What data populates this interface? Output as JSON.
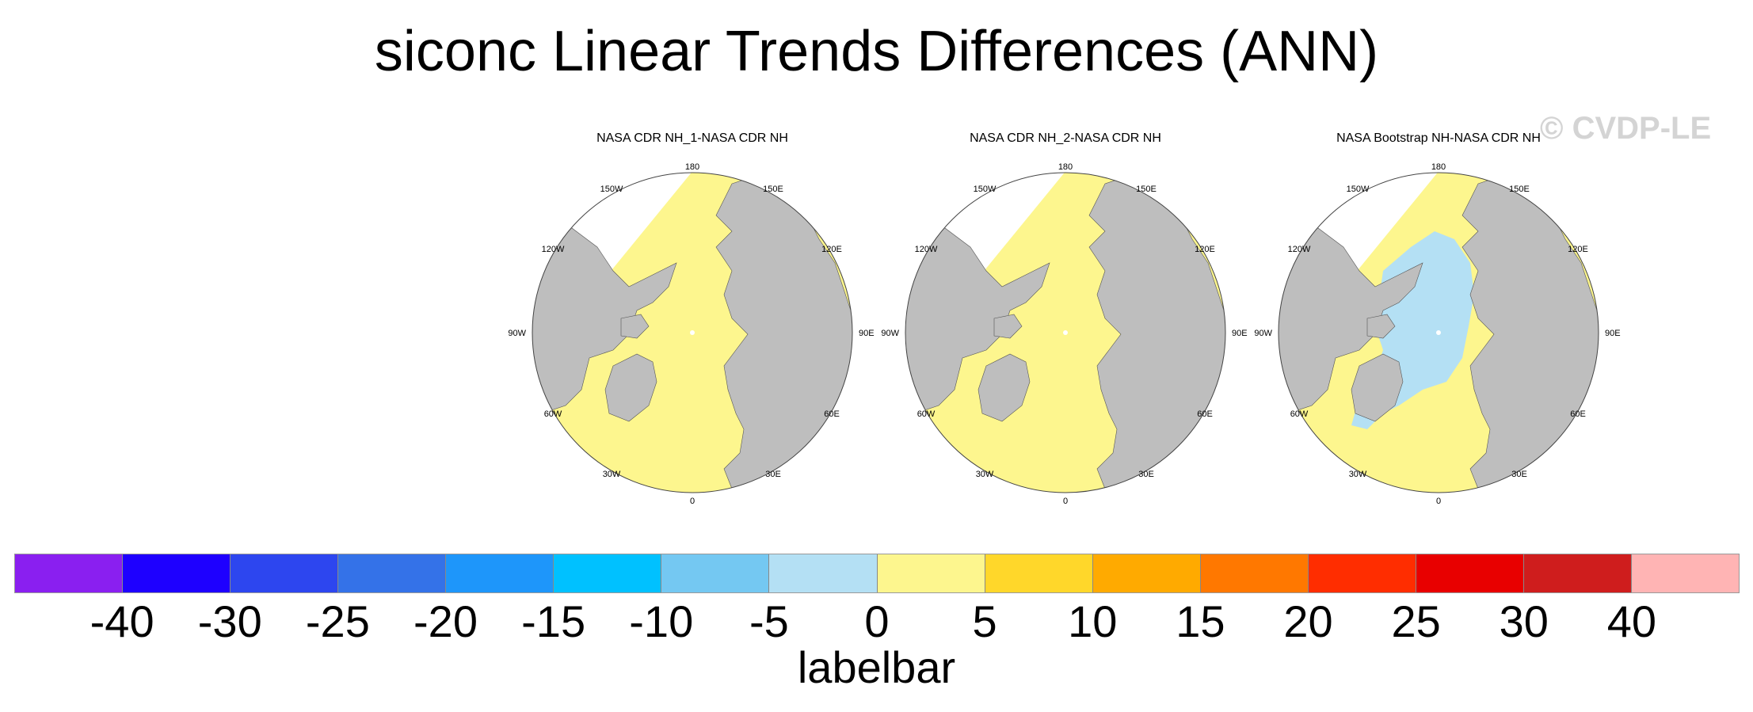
{
  "title": "siconc Linear Trends Differences (ANN)",
  "watermark": "© CVDP-LE",
  "panels": [
    {
      "title": "NASA CDR NH_1-NASA CDR NH",
      "lon_labels": [
        "180",
        "150E",
        "120E",
        "90E",
        "60E",
        "30E",
        "0",
        "30W",
        "60W",
        "90W",
        "120W",
        "150W"
      ]
    },
    {
      "title": "NASA CDR NH_2-NASA CDR NH",
      "lon_labels": [
        "180",
        "150E",
        "120E",
        "90E",
        "60E",
        "30E",
        "0",
        "30W",
        "60W",
        "90W",
        "120W",
        "150W"
      ]
    },
    {
      "title": "NASA Bootstrap NH-NASA CDR NH",
      "lon_labels": [
        "180",
        "150E",
        "120E",
        "90E",
        "60E",
        "30E",
        "0",
        "30W",
        "60W",
        "90W",
        "120W",
        "150W"
      ]
    }
  ],
  "colorbar": {
    "colors": [
      "#8a1ff0",
      "#1e00ff",
      "#2d46ef",
      "#3472e8",
      "#1e96fa",
      "#00c1ff",
      "#74c8f2",
      "#b4e0f4",
      "#fdf68e",
      "#ffd72a",
      "#ffaa00",
      "#ff7800",
      "#ff2d00",
      "#e80000",
      "#cf1d1d",
      "#ffb4b4"
    ],
    "labels": [
      "-40",
      "-30",
      "-25",
      "-20",
      "-15",
      "-10",
      "-5",
      "0",
      "5",
      "10",
      "15",
      "20",
      "25",
      "30",
      "40"
    ],
    "title": "labelbar"
  },
  "map_colors": {
    "land": "#bebebe",
    "ice_trend_zero_to_five": "#fdf68e",
    "ice_trend_neg_five_to_zero": "#b4e0f4",
    "missing": "#ffffff"
  }
}
